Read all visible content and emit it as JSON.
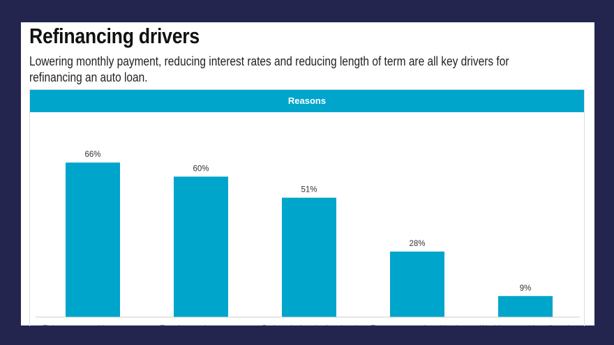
{
  "title": "Refinancing drivers",
  "subtitle": "Lowering monthly payment, reducing interest rates and reducing length of term are all key drivers for refinancing an auto loan.",
  "colors": {
    "background": "#23254e",
    "bar": "#00a5cb",
    "header": "#00a5cb"
  },
  "chart_data": {
    "type": "bar",
    "title": "Reasons",
    "categories": [
      [
        "To lower my monthly repayment"
      ],
      [
        "To reduce my interest rate",
        "(APR)"
      ],
      [
        "Reduce the length of my loan/",
        "pay it off faster"
      ],
      [
        "To move to a preferred lender"
      ],
      [
        "Would not consider refinancing"
      ]
    ],
    "values": [
      66,
      60,
      51,
      28,
      9
    ],
    "value_labels": [
      "66%",
      "60%",
      "51%",
      "28%",
      "9%"
    ],
    "unit": "%",
    "ylim": [
      0,
      70
    ],
    "grid": false,
    "legend": "none"
  }
}
